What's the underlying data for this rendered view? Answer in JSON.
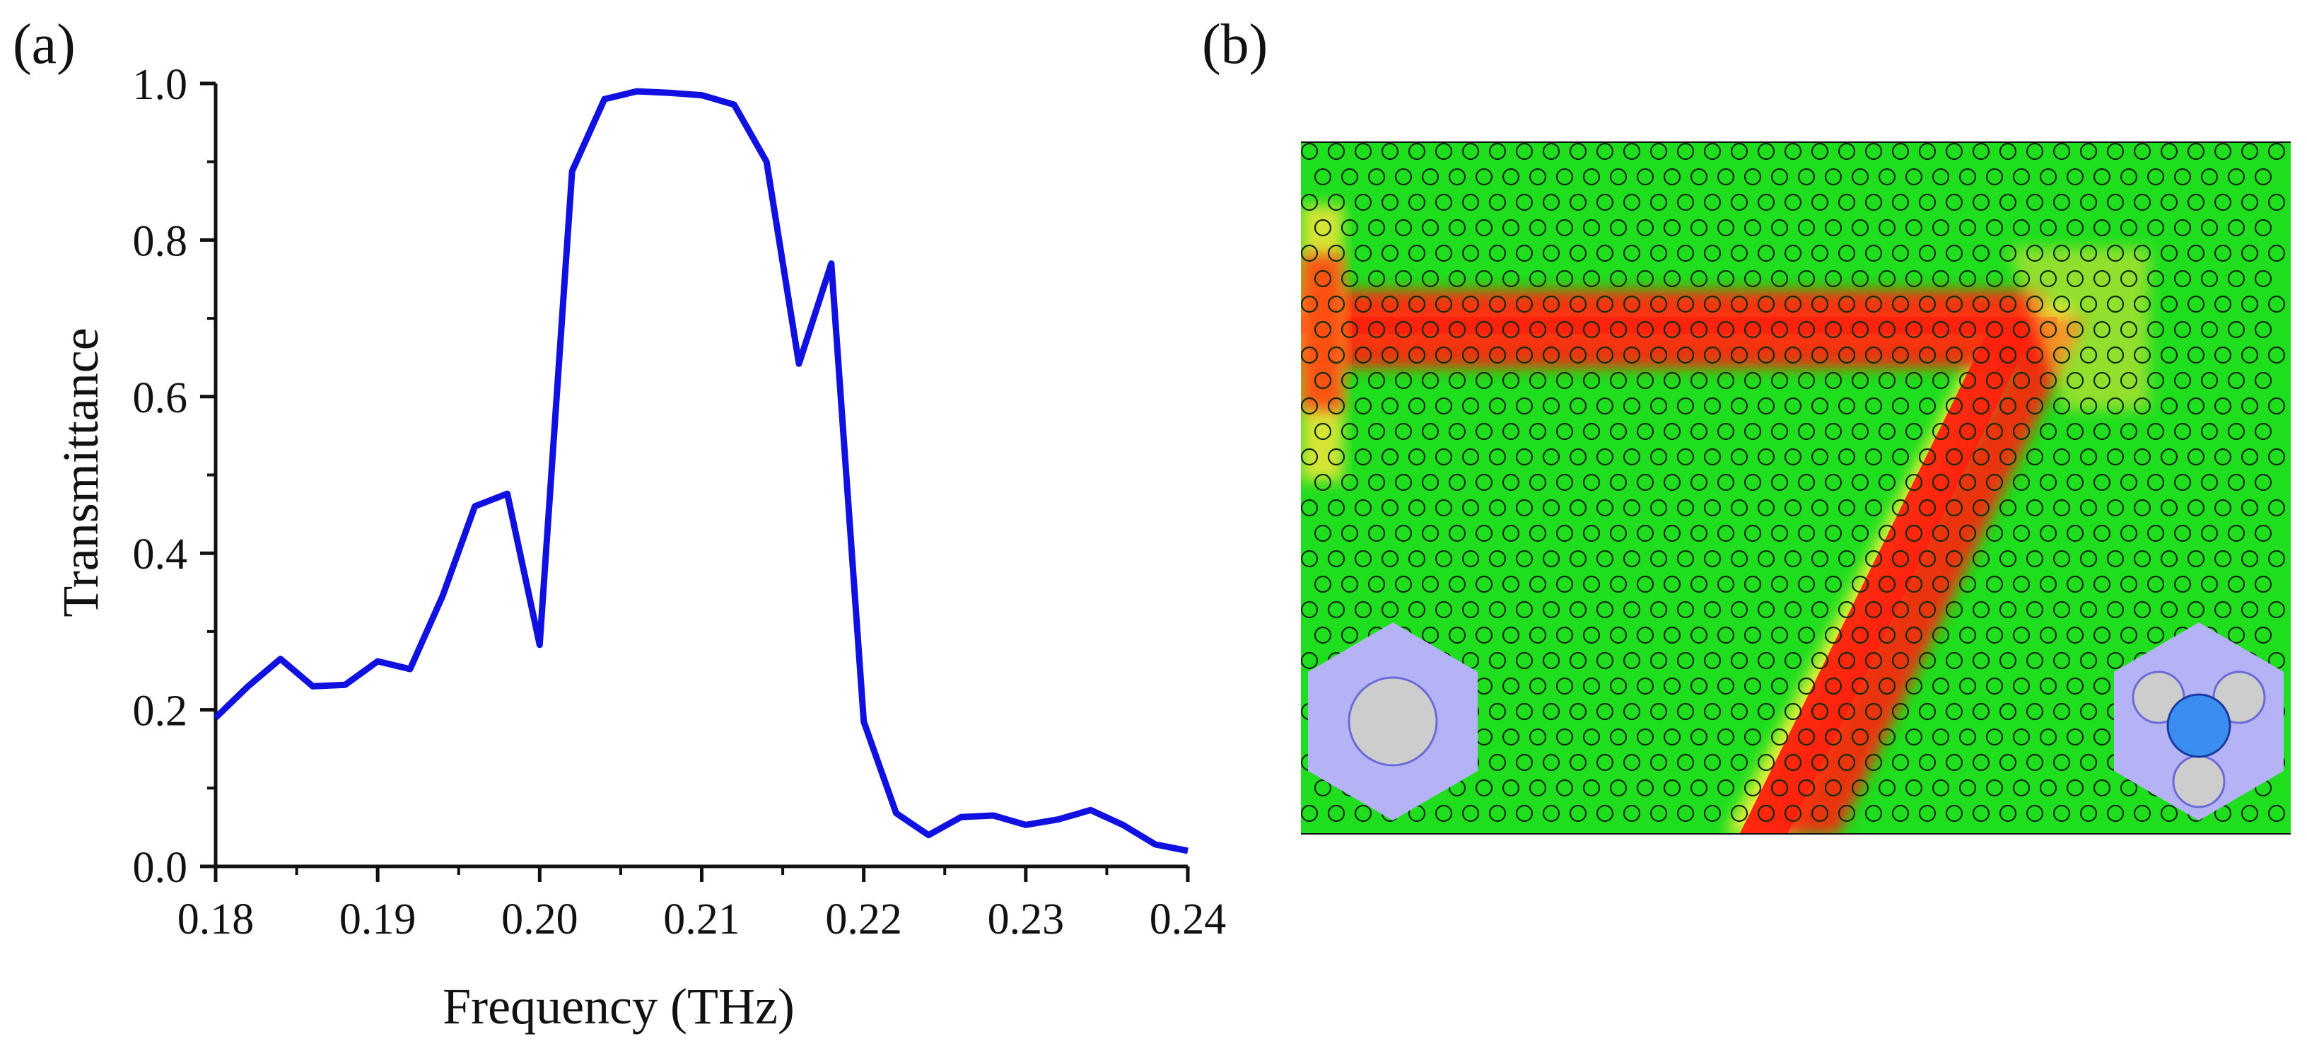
{
  "panels": {
    "a_label": "(a)",
    "b_label": "(b)"
  },
  "chart_data": {
    "type": "line",
    "title": "",
    "xlabel": "Frequency (THz)",
    "ylabel": "Transmittance",
    "xlim": [
      0.18,
      0.24
    ],
    "ylim": [
      0.0,
      1.0
    ],
    "xticks": [
      "0.18",
      "0.19",
      "0.20",
      "0.21",
      "0.22",
      "0.23",
      "0.24"
    ],
    "xtick_values": [
      0.18,
      0.19,
      0.2,
      0.21,
      0.22,
      0.23,
      0.24
    ],
    "yticks": [
      "0.0",
      "0.2",
      "0.4",
      "0.6",
      "0.8",
      "1.0"
    ],
    "ytick_values": [
      0.0,
      0.2,
      0.4,
      0.6,
      0.8,
      1.0
    ],
    "grid": false,
    "series": [
      {
        "name": "Transmittance",
        "color": "#1010e0",
        "x": [
          0.18,
          0.182,
          0.184,
          0.186,
          0.188,
          0.19,
          0.192,
          0.194,
          0.196,
          0.198,
          0.2,
          0.202,
          0.204,
          0.206,
          0.208,
          0.21,
          0.212,
          0.214,
          0.216,
          0.218,
          0.22,
          0.222,
          0.224,
          0.226,
          0.228,
          0.23,
          0.232,
          0.234,
          0.236,
          0.238,
          0.24
        ],
        "y": [
          0.19,
          0.23,
          0.265,
          0.23,
          0.232,
          0.262,
          0.252,
          0.345,
          0.46,
          0.476,
          0.283,
          0.888,
          0.98,
          0.99,
          0.988,
          0.985,
          0.973,
          0.9,
          0.642,
          0.77,
          0.185,
          0.068,
          0.04,
          0.063,
          0.065,
          0.053,
          0.06,
          0.072,
          0.053,
          0.028,
          0.02
        ]
      }
    ]
  },
  "field_map": {
    "description_colors": {
      "background": "#1ede1e",
      "waveguide": "#ff1a10",
      "cell_fill": "#b3b3f5",
      "rod": "#cdcdcd",
      "center_rod": "#3a8ef0"
    },
    "insets": [
      "trivial-unit-cell",
      "topological-unit-cell"
    ]
  }
}
